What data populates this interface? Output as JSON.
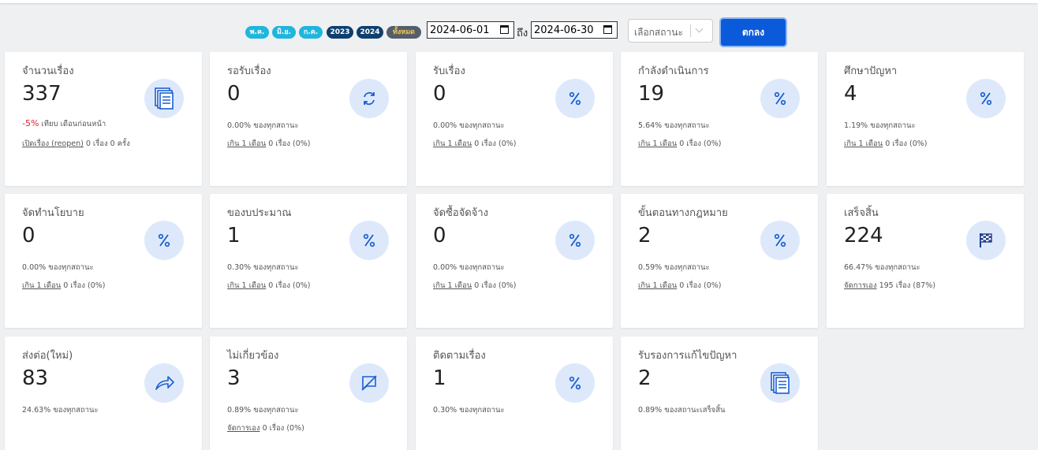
{
  "filters": {
    "badges": [
      "พ.ค.",
      "มิ.ย.",
      "ก.ค.",
      "2023",
      "2024",
      "ทั้งหมด"
    ],
    "date_from": "2024-06-01",
    "to_label": "ถึง",
    "date_to": "2024-06-30",
    "status_placeholder": "เลือกสถานะ",
    "submit": "ตกลง"
  },
  "cards": [
    {
      "title": "จำนวนเรื่อง",
      "value": 337,
      "change": "-5%",
      "change_note": "เทียบ เดือนก่อนหน้า",
      "link": "เปิดเรื่อง (reopen)",
      "link_note": "0 เรื่อง 0 ครั้ง"
    },
    {
      "title": "รอรับเรื่อง",
      "value": 0,
      "percent": "0.00%",
      "percent_note": "ของทุกสถานะ",
      "link": "เกิน 1 เดือน",
      "link_note": "0 เรื่อง (0%)"
    },
    {
      "title": "รับเรื่อง",
      "value": 0,
      "percent": "0.00%",
      "percent_note": "ของทุกสถานะ",
      "link": "เกิน 1 เดือน",
      "link_note": "0 เรื่อง (0%)"
    },
    {
      "title": "กำลังดำเนินการ",
      "value": 19,
      "percent": "5.64%",
      "percent_note": "ของทุกสถานะ",
      "link": "เกิน 1 เดือน",
      "link_note": "0 เรื่อง (0%)"
    },
    {
      "title": "ศึกษาปัญหา",
      "value": 4,
      "percent": "1.19%",
      "percent_note": "ของทุกสถานะ",
      "link": "เกิน 1 เดือน",
      "link_note": "0 เรื่อง (0%)"
    },
    {
      "title": "จัดทำนโยบาย",
      "value": 0,
      "percent": "0.00%",
      "percent_note": "ของทุกสถานะ",
      "link": "เกิน 1 เดือน",
      "link_note": "0 เรื่อง (0%)"
    },
    {
      "title": "ของบประมาณ",
      "value": 1,
      "percent": "0.30%",
      "percent_note": "ของทุกสถานะ",
      "link": "เกิน 1 เดือน",
      "link_note": "0 เรื่อง (0%)"
    },
    {
      "title": "จัดซื้อจัดจ้าง",
      "value": 0,
      "percent": "0.00%",
      "percent_note": "ของทุกสถานะ",
      "link": "เกิน 1 เดือน",
      "link_note": "0 เรื่อง (0%)"
    },
    {
      "title": "ขั้นตอนทางกฎหมาย",
      "value": 2,
      "percent": "0.59%",
      "percent_note": "ของทุกสถานะ",
      "link": "เกิน 1 เดือน",
      "link_note": "0 เรื่อง (0%)"
    },
    {
      "title": "เสร็จสิ้น",
      "value": 224,
      "percent": "66.47%",
      "percent_note": "ของทุกสถานะ",
      "link": "จัดการเอง",
      "link_note": "195 เรื่อง (87%)"
    },
    {
      "title": "ส่งต่อ(ใหม่)",
      "value": 83,
      "percent": "24.63%",
      "percent_note": "ของทุกสถานะ"
    },
    {
      "title": "ไม่เกี่ยวข้อง",
      "value": 3,
      "percent": "0.89%",
      "percent_note": "ของทุกสถานะ",
      "link": "จัดการเอง",
      "link_note": "0 เรื่อง (0%)"
    },
    {
      "title": "ติดตามเรื่อง",
      "value": 1,
      "percent": "0.30%",
      "percent_note": "ของทุกสถานะ"
    },
    {
      "title": "รับรองการแก้ไขปัญหา",
      "value": 2,
      "percent": "0.89%",
      "percent_note": "ของสถานะเสร็จสิ้น"
    }
  ]
}
